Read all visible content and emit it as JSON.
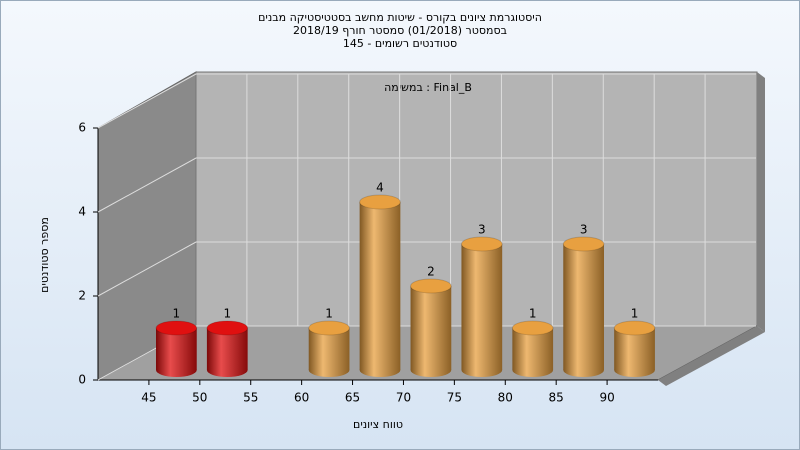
{
  "chart_data": {
    "type": "histogram",
    "title": "היסטוגרמת ציונים בקורס - שיטות מחשב בסטטיסטיקה מבנים",
    "subtitle": "בסמסטר  (01/2018)  סמסטר חורף 2018/19",
    "subtitle2": "סטודנטים רשומים - 145",
    "annotation": "במשימה : Final_B",
    "x_label": "טווח ציונים",
    "y_label": "מספר סטודנטים",
    "bins": [
      45,
      50,
      55,
      60,
      65,
      70,
      75,
      80,
      85,
      90,
      95
    ],
    "values": [
      1,
      1,
      0,
      1,
      4,
      2,
      3,
      1,
      3,
      1
    ],
    "value_labels": [
      "1",
      "1",
      null,
      "1",
      "4",
      "2",
      "3",
      "1",
      "3",
      "1"
    ],
    "colors": [
      "#e01010",
      "#e01010",
      "#e8a040",
      "#e8a040",
      "#e8a040",
      "#e8a040",
      "#e8a040",
      "#e8a040",
      "#e8a040",
      "#e8a040"
    ],
    "xlim": [
      40,
      95
    ],
    "xticks": [
      45,
      50,
      55,
      60,
      65,
      70,
      75,
      80,
      85,
      90
    ],
    "ylim": [
      0,
      6
    ],
    "yticks": [
      0,
      2,
      4,
      6
    ],
    "grid": true
  }
}
